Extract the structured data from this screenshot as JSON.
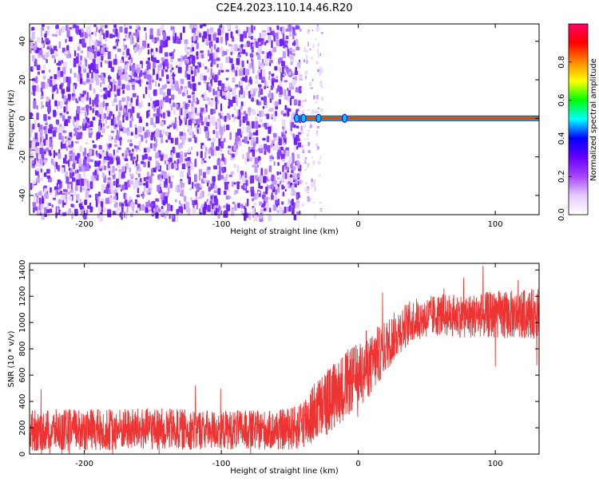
{
  "title": "C2E4.2023.110.14.46.R20",
  "chart_data": [
    {
      "type": "heatmap",
      "xlabel": "Height of straight line (km)",
      "ylabel": "Frequency (Hz)",
      "xlim": [
        -240,
        132
      ],
      "ylim": [
        -50,
        49
      ],
      "x_ticks": [
        -200,
        -100,
        0,
        100
      ],
      "y_ticks": [
        -40,
        -20,
        0,
        20,
        40
      ],
      "colorbar": {
        "label": "Normalized spectral amplitude",
        "range": [
          0,
          1
        ],
        "ticks": [
          "0.0",
          "0.2",
          "0.4",
          "0.6",
          "0.8"
        ],
        "colors": [
          "#ffffff",
          "#e6ccff",
          "#aa44ff",
          "#6600ff",
          "#0000ff",
          "#00ffff",
          "#00ff00",
          "#ffff00",
          "#ff8800",
          "#ff0000",
          "#ff0066"
        ]
      },
      "features": {
        "noise_region_x": [
          -240,
          -43
        ],
        "sparse_noise_x": [
          -43,
          -27
        ],
        "carrier_freq_hz": 0,
        "carrier_start_x": -45,
        "carrier_amplitude": 0.85
      }
    },
    {
      "type": "line",
      "xlabel": "Height of straight line (km)",
      "ylabel": "SNR (10 * v/v)",
      "xlim": [
        -240,
        132
      ],
      "ylim": [
        0,
        1450
      ],
      "x_ticks": [
        -200,
        -100,
        0,
        100
      ],
      "y_ticks": [
        0,
        200,
        400,
        600,
        800,
        1000,
        1200,
        1400
      ],
      "series": [
        {
          "color": "#ee3333",
          "x": [
            -240,
            -200,
            -150,
            -100,
            -60,
            -45,
            -35,
            -20,
            -10,
            0,
            10,
            20,
            30,
            40,
            60,
            80,
            100,
            120,
            132
          ],
          "mean": [
            180,
            185,
            190,
            185,
            180,
            200,
            290,
            420,
            520,
            600,
            680,
            820,
            940,
            1020,
            1060,
            1050,
            1060,
            1060,
            1070
          ],
          "spread": [
            160,
            160,
            160,
            150,
            150,
            170,
            230,
            260,
            260,
            250,
            230,
            200,
            180,
            160,
            160,
            170,
            180,
            190,
            190
          ]
        }
      ]
    }
  ]
}
